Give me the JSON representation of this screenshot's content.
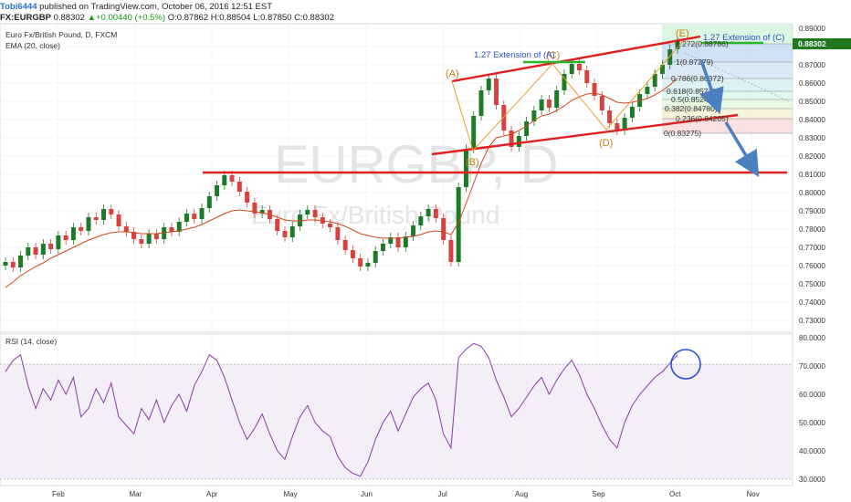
{
  "header": {
    "user": "Tobi6444",
    "published": "published on TradingView.com, October 06, 2016 12:51 EST",
    "symbol": "FX:EURGBP",
    "last": "0.88302",
    "change": "+0.00440 (+0.5%)",
    "o_label": "O:",
    "o": "0.87862",
    "h_label": "H:",
    "h": "0.88504",
    "l_label": "L:",
    "l": "0.87850",
    "c_label": "C:",
    "c": "0.88302"
  },
  "legend": {
    "instrument": "Euro Fx/British Pound, D, FXCM",
    "ema": "EMA (20, close)",
    "rsi": "RSI (14, close)"
  },
  "watermark": {
    "symbol": "EURGBP, D",
    "name": "Euro Fx/British Pound"
  },
  "annotations": {
    "wave_a": "(A)",
    "wave_b": "(B)",
    "wave_c": "(C)",
    "wave_d": "(D)",
    "wave_e": "(E)",
    "ext_c": "1.27 Extension of (A)",
    "ext_e": "1.27 Extension of (C)"
  },
  "fib_levels": [
    {
      "label": "1.272(0.88786)"
    },
    {
      "label": "1(0.87279)"
    },
    {
      "label": "0.786(0.86372)"
    },
    {
      "label": "0.618(0.85710)"
    },
    {
      "label": "0.5(0.85245)"
    },
    {
      "label": "0.382(0.84780)"
    },
    {
      "label": "0.236(0.84205)"
    },
    {
      "label": "0(0.83275)"
    }
  ],
  "colors": {
    "up": "#1d7a27",
    "down": "#d94040",
    "ema": "#d0491c",
    "rsi": "#8a3aa8",
    "trendline": "#e02020",
    "arrow": "#4a7fc0",
    "wave": "#e8a030",
    "price_tag": "#1f7a1f"
  },
  "chart_data": [
    {
      "type": "candlestick",
      "title": "Euro Fx/British Pound, D, FXCM",
      "x_ticks": [
        "Feb",
        "Mar",
        "Apr",
        "May",
        "Jun",
        "Jul",
        "Aug",
        "Sep",
        "Oct",
        "Nov"
      ],
      "y_ticks": [
        "0.89000",
        "0.88000",
        "0.87000",
        "0.86000",
        "0.85000",
        "0.84000",
        "0.83000",
        "0.82000",
        "0.81000",
        "0.80000",
        "0.79000",
        "0.78000",
        "0.77000",
        "0.76000",
        "0.75000",
        "0.74000",
        "0.73000"
      ],
      "ylim": [
        0.724,
        0.892
      ],
      "current_price_label": "0.88302",
      "current_price": 0.88302,
      "closes": [
        0.762,
        0.759,
        0.7655,
        0.77,
        0.766,
        0.772,
        0.769,
        0.7765,
        0.774,
        0.781,
        0.779,
        0.7865,
        0.785,
        0.791,
        0.788,
        0.7815,
        0.7785,
        0.7745,
        0.772,
        0.7775,
        0.7745,
        0.781,
        0.7785,
        0.784,
        0.7885,
        0.7855,
        0.7915,
        0.798,
        0.804,
        0.8095,
        0.806,
        0.8005,
        0.7945,
        0.7885,
        0.7905,
        0.7855,
        0.779,
        0.7755,
        0.7815,
        0.788,
        0.7905,
        0.7865,
        0.783,
        0.781,
        0.774,
        0.7685,
        0.764,
        0.7595,
        0.7615,
        0.768,
        0.772,
        0.7755,
        0.77,
        0.776,
        0.782,
        0.787,
        0.791,
        0.786,
        0.774,
        0.762,
        0.803,
        0.824,
        0.842,
        0.856,
        0.8625,
        0.848,
        0.834,
        0.825,
        0.831,
        0.839,
        0.845,
        0.851,
        0.8465,
        0.856,
        0.865,
        0.8705,
        0.867,
        0.86,
        0.853,
        0.845,
        0.838,
        0.834,
        0.841,
        0.847,
        0.854,
        0.858,
        0.865,
        0.87,
        0.8785,
        0.883
      ],
      "ema_20": [
        0.748,
        0.751,
        0.7545,
        0.757,
        0.7595,
        0.7615,
        0.764,
        0.766,
        0.768,
        0.77,
        0.772,
        0.774,
        0.7755,
        0.777,
        0.778,
        0.7785,
        0.7785,
        0.778,
        0.7775,
        0.7775,
        0.7775,
        0.778,
        0.7785,
        0.779,
        0.78,
        0.781,
        0.7825,
        0.7845,
        0.7865,
        0.7885,
        0.79,
        0.7905,
        0.79,
        0.7895,
        0.789,
        0.788,
        0.7865,
        0.785,
        0.7845,
        0.7845,
        0.785,
        0.785,
        0.7845,
        0.784,
        0.783,
        0.7815,
        0.7795,
        0.7775,
        0.7765,
        0.7755,
        0.775,
        0.775,
        0.775,
        0.7755,
        0.776,
        0.777,
        0.7785,
        0.779,
        0.7785,
        0.777,
        0.7835,
        0.794,
        0.805,
        0.816,
        0.825,
        0.83,
        0.831,
        0.832,
        0.834,
        0.8365,
        0.8395,
        0.842,
        0.843,
        0.845,
        0.8475,
        0.8505,
        0.8525,
        0.854,
        0.8545,
        0.8535,
        0.8515,
        0.8495,
        0.849,
        0.8495,
        0.8505,
        0.8515,
        0.8535,
        0.856,
        0.859,
        0.8625
      ]
    },
    {
      "type": "line",
      "title": "RSI (14, close)",
      "y_ticks": [
        "80.0000",
        "70.0000",
        "60.0000",
        "50.0000",
        "40.0000",
        "30.0000"
      ],
      "ylim": [
        28,
        81
      ],
      "band": [
        30,
        70
      ],
      "values": [
        68,
        72,
        74,
        63,
        55,
        62,
        58,
        65,
        60,
        66,
        52,
        55,
        62,
        57,
        64,
        52,
        49,
        46,
        55,
        51,
        58,
        50,
        56,
        60,
        54,
        63,
        68,
        74,
        72,
        66,
        58,
        50,
        44,
        48,
        53,
        46,
        40,
        37,
        45,
        52,
        56,
        50,
        47,
        45,
        38,
        34,
        32,
        31,
        36,
        44,
        50,
        54,
        47,
        53,
        59,
        62,
        64,
        58,
        46,
        41,
        73,
        76,
        78,
        77,
        73,
        65,
        59,
        52,
        55,
        59,
        63,
        66,
        60,
        65,
        69,
        72,
        67,
        60,
        55,
        49,
        44,
        41,
        50,
        56,
        60,
        63,
        66,
        68,
        71,
        74
      ]
    }
  ]
}
